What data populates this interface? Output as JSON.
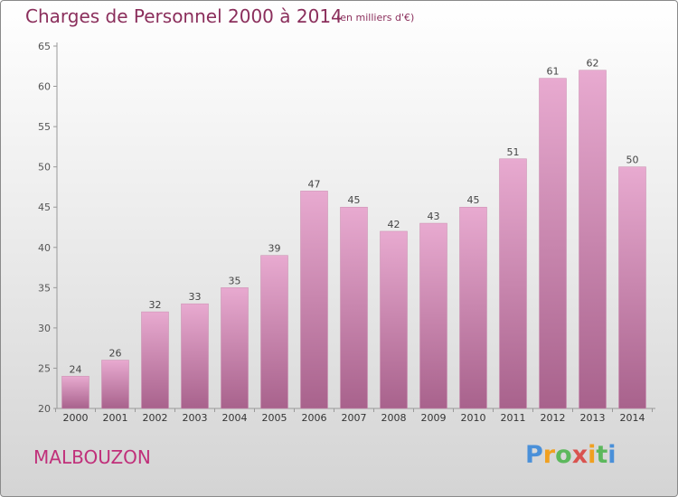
{
  "title": "Charges de Personnel 2000 à 2014",
  "subtitle": "(en milliers d'€)",
  "place": "MALBOUZON",
  "brand": {
    "letters": [
      "P",
      "r",
      "o",
      "x",
      "i",
      "t",
      "i"
    ],
    "colors": [
      "#4a90d9",
      "#f0a020",
      "#5cb85c",
      "#d9534f",
      "#f0a020",
      "#5cb85c",
      "#4a90d9"
    ]
  },
  "colors": {
    "bar_light": "#e8aad0",
    "bar_dark": "#a8628c",
    "text": "#8b2f5c",
    "place": "#c0307a"
  },
  "chart_data": {
    "type": "bar",
    "categories": [
      "2000",
      "2001",
      "2002",
      "2003",
      "2004",
      "2005",
      "2006",
      "2007",
      "2008",
      "2009",
      "2010",
      "2011",
      "2012",
      "2013",
      "2014"
    ],
    "values": [
      24,
      26,
      32,
      33,
      35,
      39,
      47,
      45,
      42,
      43,
      45,
      51,
      61,
      62,
      50
    ],
    "title": "Charges de Personnel 2000 à 2014",
    "xlabel": "",
    "ylabel": "",
    "ylim": [
      20,
      65
    ],
    "yticks": [
      20,
      25,
      30,
      35,
      40,
      45,
      50,
      55,
      60,
      65
    ],
    "grid": false,
    "data_labels": true
  }
}
